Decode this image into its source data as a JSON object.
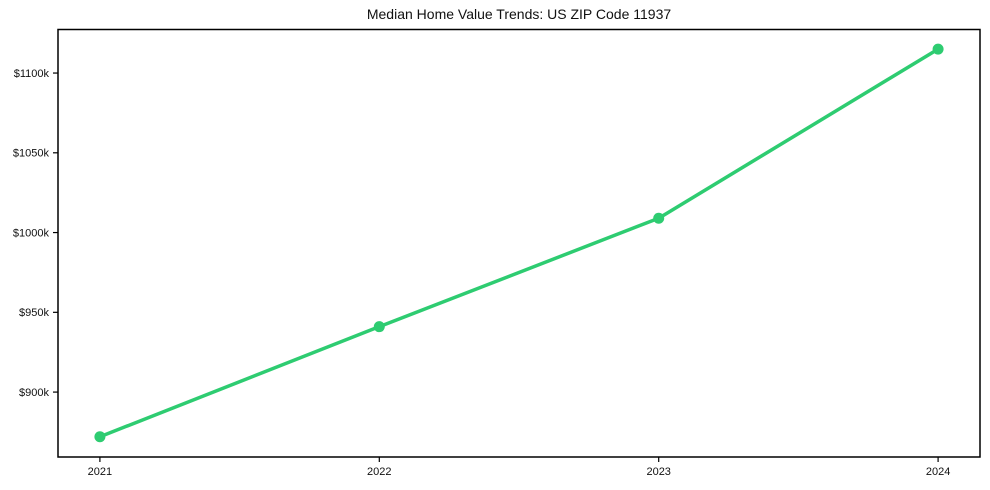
{
  "chart_data": {
    "type": "line",
    "title": "Median Home Value Trends: US ZIP Code 11937",
    "x": [
      2021,
      2022,
      2023,
      2024
    ],
    "values": [
      872,
      941,
      1009,
      1115
    ],
    "values_unit": "USD thousands",
    "xtick_labels": [
      "2021",
      "2022",
      "2023",
      "2024"
    ],
    "ytick_values": [
      900,
      950,
      1000,
      1050,
      1100
    ],
    "ytick_labels": [
      "$900k",
      "$950k",
      "$1000k",
      "$1050k",
      "$1100k"
    ],
    "xlabel": "",
    "ylabel": "",
    "xlim": [
      2020.85,
      2024.15
    ],
    "ylim": [
      859.3,
      1127.3
    ],
    "grid": false,
    "legend": false,
    "line_color": "#2ecc71",
    "axis_color": "#000000",
    "text_color": "#111111",
    "background_color": "#ffffff"
  }
}
